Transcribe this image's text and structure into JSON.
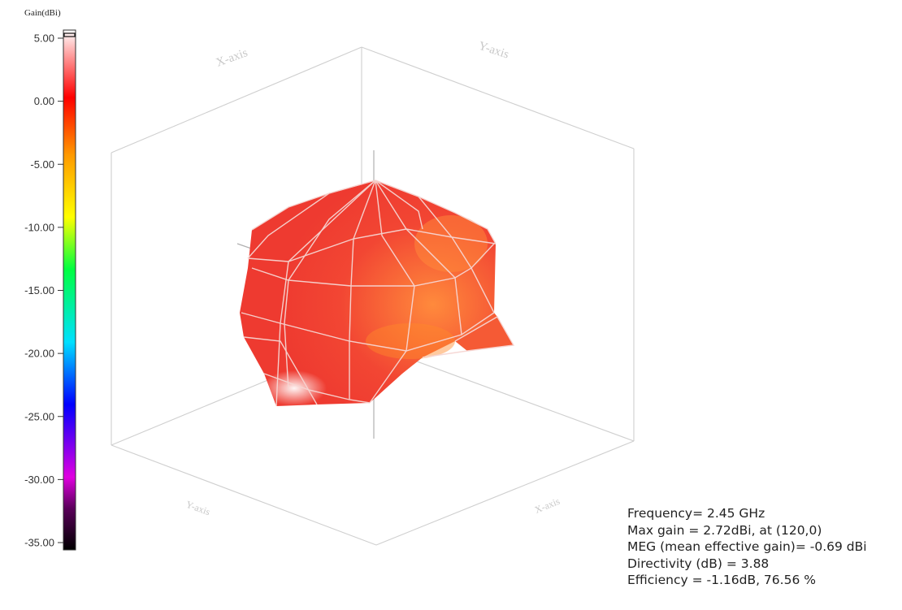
{
  "chart_data": {
    "type": "3d-radiation-pattern",
    "colorbar": {
      "title": "Gain(dBi)",
      "range": [
        -35,
        5
      ],
      "ticks": [
        "5.00",
        "0.00",
        "-5.00",
        "-10.00",
        "-15.00",
        "-20.00",
        "-25.00",
        "-30.00",
        "-35.00"
      ],
      "tick_values": [
        5,
        0,
        -5,
        -10,
        -15,
        -20,
        -25,
        -30,
        -35
      ],
      "colormap": [
        "#000000",
        "#5a005a",
        "#e000e0",
        "#0000ff",
        "#00e0ff",
        "#00ff40",
        "#ffff00",
        "#ff9900",
        "#ff0000",
        "#ff9999",
        "#ffffff"
      ]
    },
    "axes": {
      "back_left": "X-axis",
      "back_right": "Y-axis",
      "front_left": "Y-axis",
      "front_right": "X-axis"
    },
    "surface_color": "#f03c32"
  },
  "stats": {
    "frequency": "Frequency= 2.45 GHz",
    "max_gain": "Max gain = 2.72dBi, at (120,0)",
    "meg": "MEG (mean effective gain)= -0.69 dBi",
    "directivity": "Directivity (dB) = 3.88",
    "efficiency": "Efficiency = -1.16dB, 76.56 %"
  }
}
